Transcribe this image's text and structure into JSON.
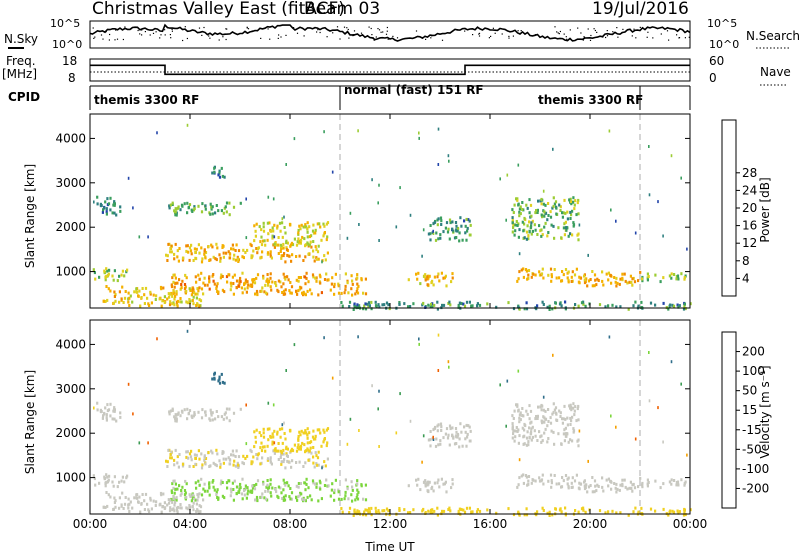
{
  "header": {
    "title": "Christmas Valley East (fitACF)",
    "beam": "Beam 03",
    "date": "19/Jul/2016"
  },
  "strips": {
    "nsky_label": "N.Sky",
    "nsky_ticks": [
      "10^5",
      "10^0"
    ],
    "nsearch_label": "N.Search",
    "nsearch_ticks": [
      "10^5",
      "10^0"
    ],
    "freq_label_1": "Freq.",
    "freq_label_2": "[MHz]",
    "freq_ticks": [
      "18",
      "8"
    ],
    "nave_label": "Nave",
    "nave_ticks": [
      "60",
      "0"
    ],
    "cpid_label": "CPID",
    "cpid_segments": [
      {
        "label": "themis 3300 RF",
        "start_hour": 0,
        "end_hour": 10
      },
      {
        "label": "normal (fast) 151 RF",
        "start_hour": 10,
        "end_hour": 22
      },
      {
        "label": "themis 3300 RF",
        "start_hour": 22,
        "end_hour": 24
      }
    ]
  },
  "panels": {
    "ylabel": "Slant Range [km]",
    "xlabel": "Time UT",
    "x_ticks": [
      "00:00",
      "04:00",
      "08:00",
      "12:00",
      "16:00",
      "20:00",
      "00:00"
    ],
    "y_ticks": [
      "1000",
      "2000",
      "3000",
      "4000"
    ]
  },
  "colorbars": {
    "power": {
      "label": "Power [dB]",
      "ticks": [
        "4",
        "8",
        "12",
        "16",
        "20",
        "24",
        "28"
      ],
      "colors": [
        "#1a1aff",
        "#2244aa",
        "#2e7f7f",
        "#3a9e5e",
        "#9ccc33",
        "#e0d020",
        "#f4b000",
        "#f08a00",
        "#ec5a00",
        "#e42000"
      ]
    },
    "velocity": {
      "label": "Velocity [m s⁻¹]",
      "ticks": [
        "200",
        "100",
        "50",
        "15",
        "-15",
        "-50",
        "-100",
        "-200"
      ],
      "colors": [
        "#1c3a9a",
        "#2f6e8a",
        "#3a9a52",
        "#7cd63c",
        "#c8c8c0",
        "#f0d020",
        "#f4a000",
        "#f06000",
        "#e81818"
      ]
    }
  },
  "chart_data": {
    "type": "heatmap",
    "x_unit": "hour UT",
    "xlim": [
      0,
      24
    ],
    "ylim": [
      180,
      4550
    ],
    "frequency_MHz": [
      {
        "start_hour": 0,
        "end_hour": 3,
        "value": 16.5
      },
      {
        "start_hour": 3,
        "end_hour": 15,
        "value": 10.5
      },
      {
        "start_hour": 15,
        "end_hour": 24,
        "value": 16.5
      }
    ],
    "scatter_regions": [
      {
        "start_hour": 0.2,
        "end_hour": 1.2,
        "range_min": 2300,
        "range_max": 2750,
        "power_dB": 9,
        "velocity": -5
      },
      {
        "start_hour": 0,
        "end_hour": 1.5,
        "range_min": 820,
        "range_max": 1100,
        "power_dB": 14,
        "velocity": -5
      },
      {
        "start_hour": 3,
        "end_hour": 9.5,
        "range_min": 1250,
        "range_max": 1650,
        "power_dB": 21,
        "velocity": -10
      },
      {
        "start_hour": 6.5,
        "end_hour": 9.5,
        "range_min": 1600,
        "range_max": 2150,
        "power_dB": 17,
        "velocity": -30
      },
      {
        "start_hour": 3.2,
        "end_hour": 11,
        "range_min": 500,
        "range_max": 1000,
        "power_dB": 22,
        "velocity": 20
      },
      {
        "start_hour": 0.5,
        "end_hour": 4.5,
        "range_min": 250,
        "range_max": 700,
        "power_dB": 19,
        "velocity": 5
      },
      {
        "start_hour": 3,
        "end_hour": 6,
        "range_min": 2300,
        "range_max": 2600,
        "power_dB": 12,
        "velocity": -5
      },
      {
        "start_hour": 4.8,
        "end_hour": 5.4,
        "range_min": 3100,
        "range_max": 3400,
        "power_dB": 8,
        "velocity": 150
      },
      {
        "start_hour": 12.7,
        "end_hour": 14.5,
        "range_min": 700,
        "range_max": 1000,
        "power_dB": 19,
        "velocity": -5
      },
      {
        "start_hour": 13.5,
        "end_hour": 15.2,
        "range_min": 1700,
        "range_max": 2250,
        "power_dB": 10,
        "velocity": -5
      },
      {
        "start_hour": 16.8,
        "end_hour": 19.5,
        "range_min": 1750,
        "range_max": 2700,
        "power_dB": 13,
        "velocity": -5
      },
      {
        "start_hour": 17,
        "end_hour": 19.5,
        "range_min": 800,
        "range_max": 1100,
        "power_dB": 20,
        "velocity": -5
      },
      {
        "start_hour": 19.5,
        "end_hour": 22,
        "range_min": 700,
        "range_max": 1050,
        "power_dB": 21,
        "velocity": -5
      },
      {
        "start_hour": 22,
        "end_hour": 23.8,
        "range_min": 800,
        "range_max": 1000,
        "power_dB": 14,
        "velocity": -5
      },
      {
        "start_hour": 10,
        "end_hour": 24,
        "range_min": 180,
        "range_max": 350,
        "power_dB": 10,
        "velocity": -40
      }
    ]
  }
}
